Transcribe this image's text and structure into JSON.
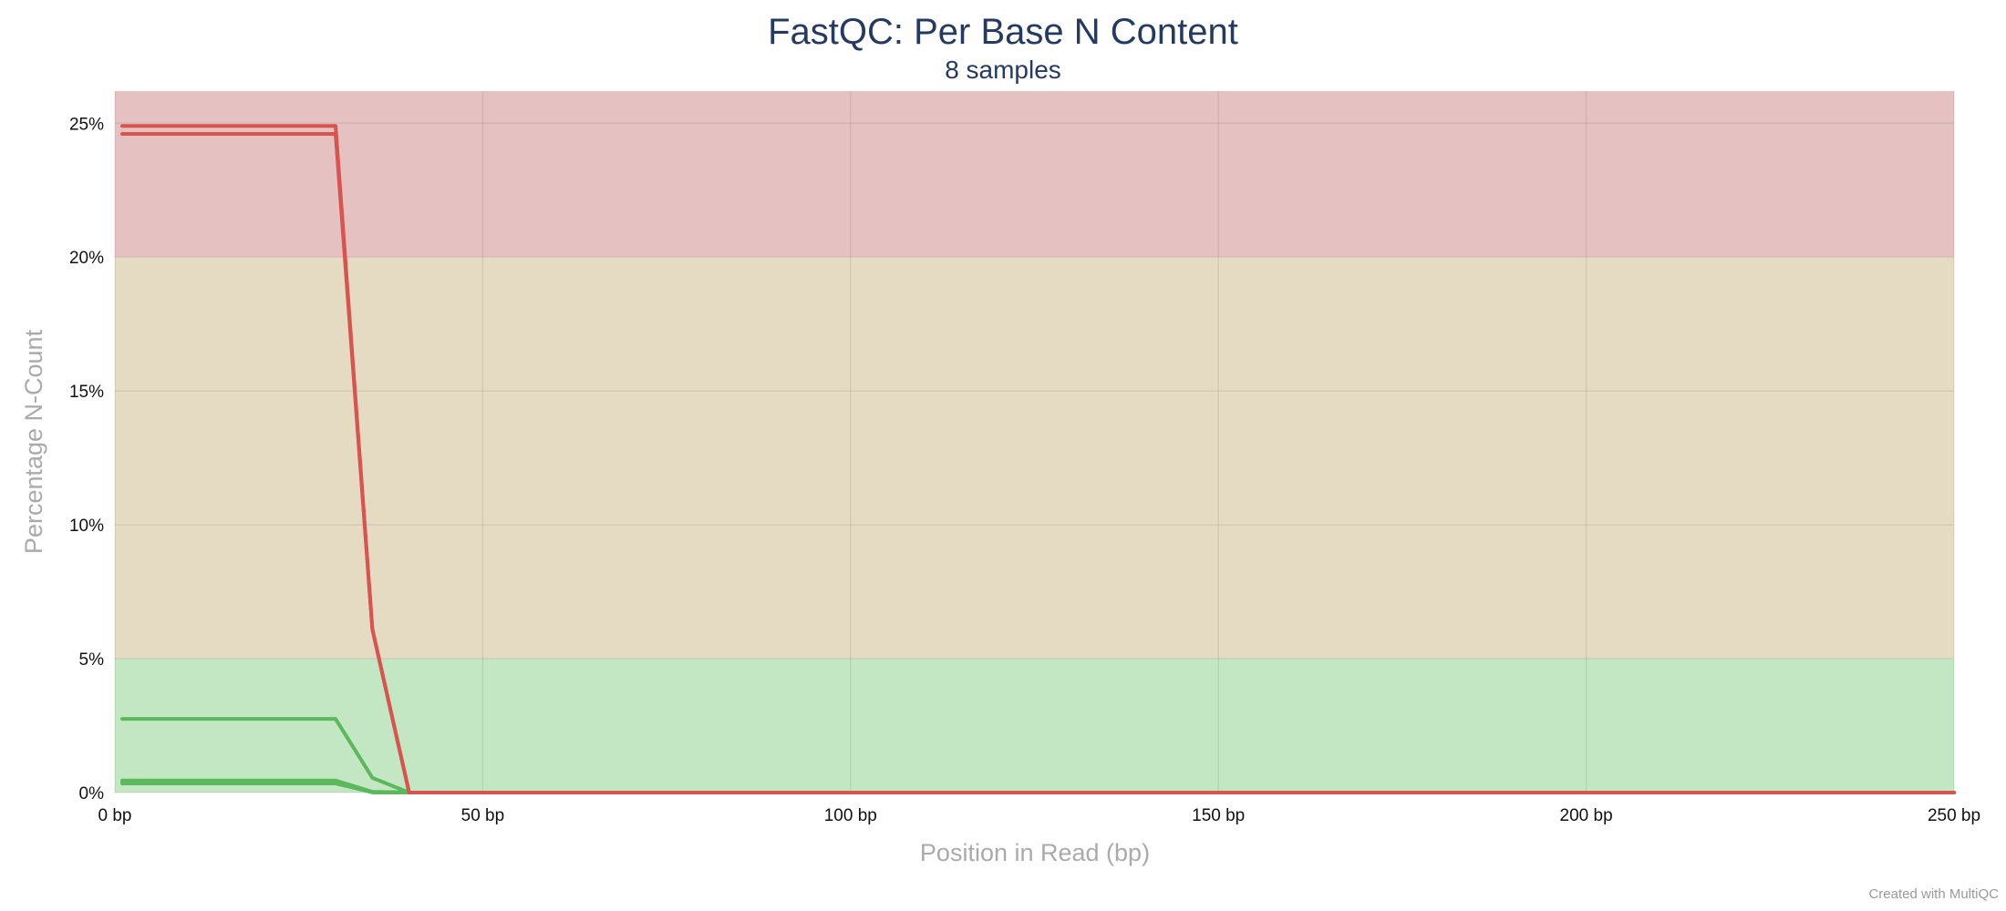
{
  "chart_data": {
    "type": "line",
    "title": "FastQC: Per Base N Content",
    "subtitle": "8 samples",
    "xlabel": "Position in Read (bp)",
    "ylabel": "Percentage N-Count",
    "xlim": [
      0,
      250
    ],
    "ylim": [
      0,
      26.2
    ],
    "x_tick_values": [
      0,
      50,
      100,
      150,
      200,
      250
    ],
    "x_tick_labels": [
      "0 bp",
      "50 bp",
      "100 bp",
      "150 bp",
      "200 bp",
      "250 bp"
    ],
    "y_tick_values": [
      0,
      5,
      10,
      15,
      20,
      25
    ],
    "y_tick_labels": [
      "0%",
      "5%",
      "10%",
      "15%",
      "20%",
      "25%"
    ],
    "grid": true,
    "legend": "none",
    "bands": [
      {
        "from": 0,
        "to": 5,
        "color": "#c3e6c3"
      },
      {
        "from": 5,
        "to": 20,
        "color": "#e5dbc3"
      },
      {
        "from": 20,
        "to": 26.2,
        "color": "#e5c1c1"
      }
    ],
    "series": [
      {
        "color": "#d9534f",
        "x": [
          1,
          30,
          35,
          40,
          250
        ],
        "y": [
          24.9,
          24.9,
          6.1,
          0,
          0
        ]
      },
      {
        "color": "#d9534f",
        "x": [
          1,
          30,
          35,
          40,
          250
        ],
        "y": [
          24.6,
          24.6,
          6.1,
          0,
          0
        ]
      },
      {
        "color": "#5cb85c",
        "x": [
          1,
          30,
          35,
          40,
          250
        ],
        "y": [
          2.75,
          2.75,
          0.55,
          0,
          0
        ]
      },
      {
        "color": "#5cb85c",
        "x": [
          1,
          30,
          35,
          40,
          250
        ],
        "y": [
          0.45,
          0.45,
          0.03,
          0,
          0
        ]
      },
      {
        "color": "#5cb85c",
        "x": [
          1,
          30,
          35,
          40,
          250
        ],
        "y": [
          0.42,
          0.42,
          0.02,
          0,
          0
        ]
      },
      {
        "color": "#5cb85c",
        "x": [
          1,
          30,
          35,
          40,
          250
        ],
        "y": [
          0.38,
          0.38,
          0.01,
          0,
          0
        ]
      },
      {
        "color": "#5cb85c",
        "x": [
          1,
          30,
          35,
          40,
          250
        ],
        "y": [
          0.36,
          0.36,
          0.01,
          0,
          0
        ]
      },
      {
        "color": "#5cb85c",
        "x": [
          1,
          30,
          35,
          40,
          250
        ],
        "y": [
          0.34,
          0.34,
          0.01,
          0,
          0
        ]
      }
    ]
  },
  "credit": "Created with MultiQC"
}
